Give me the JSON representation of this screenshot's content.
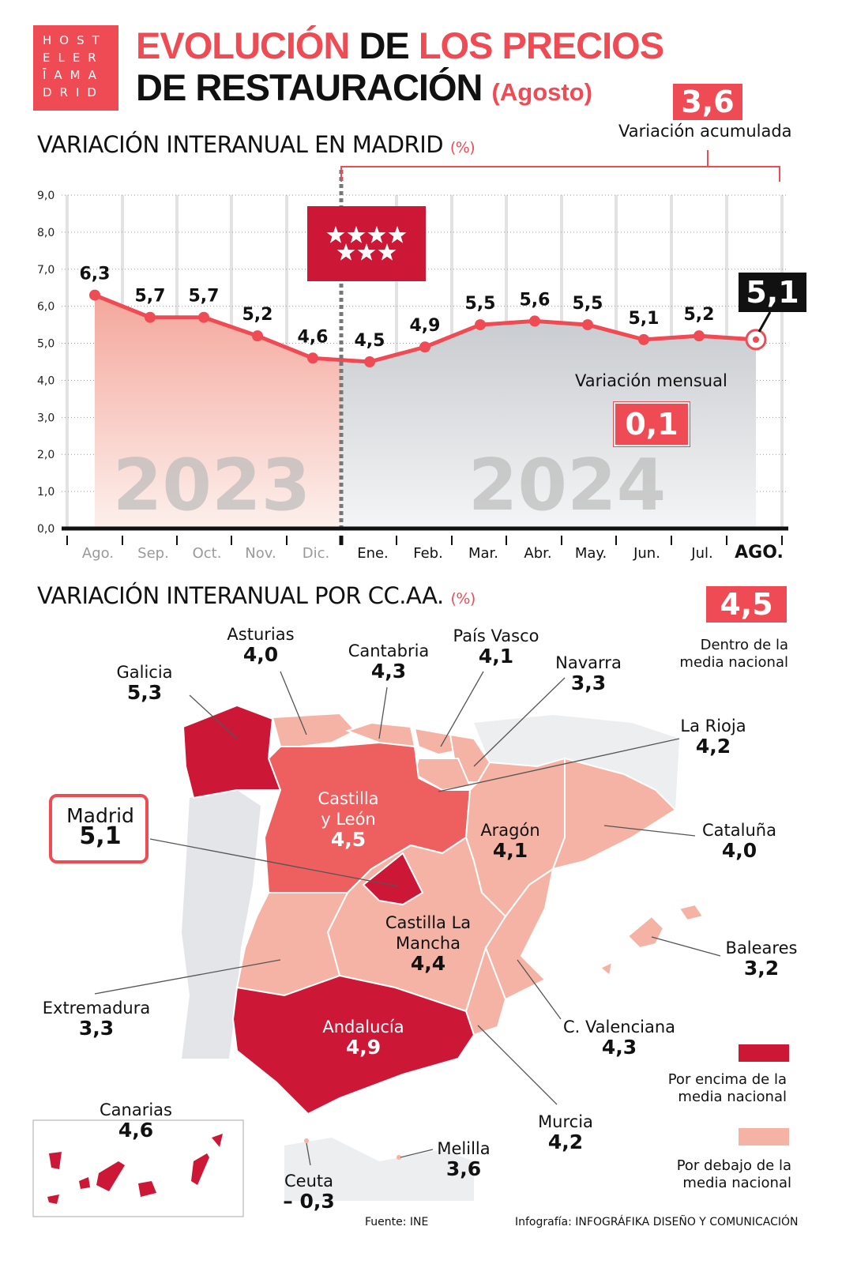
{
  "logo": {
    "text": [
      "HOST",
      "ELER",
      "ĪAMA",
      "DRID"
    ]
  },
  "title": {
    "line1_red": "EVOLUCIÓN",
    "line1_black": "DE",
    "line1_red2": "LOS PRECIOS",
    "line2": "DE RESTAURACIÓN",
    "subtitle": "(Agosto)"
  },
  "section1": {
    "title": "VARIACIÓN INTERANUAL EN MADRID",
    "unit": "(%)"
  },
  "accumulated": {
    "value": "3,6",
    "label": "Variación acumulada"
  },
  "monthly": {
    "value": "0,1",
    "label": "Variación mensual"
  },
  "current_callout": "5,1",
  "colors": {
    "accent": "#ee4b55",
    "above": "#cc1836",
    "below": "#f5b3a5",
    "cyl": "#ee5f5f",
    "area_2024": "#c9ccd0",
    "area_2023": "#f4a79c"
  },
  "chart_data": {
    "type": "area",
    "categories": [
      "Ago.",
      "Sep.",
      "Oct.",
      "Nov.",
      "Dic.",
      "Ene.",
      "Feb.",
      "Mar.",
      "Abr.",
      "May.",
      "Jun.",
      "Jul.",
      "AGO."
    ],
    "values": [
      6.3,
      5.7,
      5.7,
      5.2,
      4.6,
      4.5,
      4.9,
      5.5,
      5.6,
      5.5,
      5.1,
      5.2,
      5.1
    ],
    "value_labels": [
      "6,3",
      "5,7",
      "5,7",
      "5,2",
      "4,6",
      "4,5",
      "4,9",
      "5,5",
      "5,6",
      "5,5",
      "5,1",
      "5,2",
      ""
    ],
    "years": [
      "2023",
      "2024"
    ],
    "yticks": [
      "0,0",
      "1,0",
      "2,0",
      "3,0",
      "4,0",
      "5,0",
      "6,0",
      "7,0",
      "8,0",
      "9,0"
    ],
    "ylim": [
      0,
      9
    ],
    "grid": true
  },
  "section2": {
    "title": "VARIACIÓN INTERANUAL POR CC.AA.",
    "unit": "(%)"
  },
  "national": {
    "value": "4,5",
    "label": "Dentro de la media nacional"
  },
  "regions": [
    {
      "name": "Galicia",
      "value": "5,3"
    },
    {
      "name": "Asturias",
      "value": "4,0"
    },
    {
      "name": "Cantabria",
      "value": "4,3"
    },
    {
      "name": "País Vasco",
      "value": "4,1"
    },
    {
      "name": "Navarra",
      "value": "3,3"
    },
    {
      "name": "La Rioja",
      "value": "4,2"
    },
    {
      "name": "Castilla y León",
      "value": "4,5"
    },
    {
      "name": "Aragón",
      "value": "4,1"
    },
    {
      "name": "Cataluña",
      "value": "4,0"
    },
    {
      "name": "Madrid",
      "value": "5,1"
    },
    {
      "name": "Castilla La Mancha",
      "value": "4,4"
    },
    {
      "name": "Extremadura",
      "value": "3,3"
    },
    {
      "name": "Baleares",
      "value": "3,2"
    },
    {
      "name": "C. Valenciana",
      "value": "4,3"
    },
    {
      "name": "Andalucía",
      "value": "4,9"
    },
    {
      "name": "Murcia",
      "value": "4,2"
    },
    {
      "name": "Canarias",
      "value": "4,6"
    },
    {
      "name": "Ceuta",
      "value": "– 0,3"
    },
    {
      "name": "Melilla",
      "value": "3,6"
    }
  ],
  "legend": {
    "above": "Por encima de la media nacional",
    "below": "Por debajo de la media nacional"
  },
  "footer": {
    "source": "Fuente: INE",
    "credit_prefix": "Infografía:",
    "credit": "INFOGRÁFIKA DISEÑO Y COMUNICACIÓN"
  }
}
